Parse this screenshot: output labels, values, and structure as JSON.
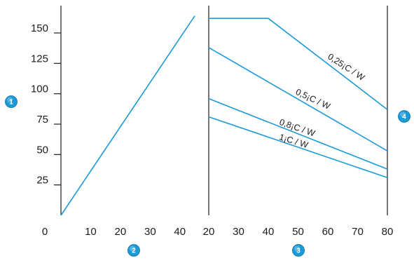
{
  "colors": {
    "line": "#1a9ad6",
    "axis": "#1a1a1a",
    "badge": "#1a9ad6",
    "badge_text": "#ffffff"
  },
  "chart_data": [
    {
      "type": "line",
      "xlim": [
        0,
        45
      ],
      "ylim": [
        0,
        175
      ],
      "x_ticks": [
        "0",
        "10",
        "20",
        "30",
        "40"
      ],
      "y_ticks": [
        "25",
        "50",
        "75",
        "100",
        "125",
        "150"
      ],
      "series": [
        {
          "x": [
            0,
            45
          ],
          "y": [
            0,
            164
          ]
        }
      ]
    },
    {
      "type": "line",
      "xlim": [
        20,
        80
      ],
      "ylim": [
        0,
        175
      ],
      "x_ticks": [
        "20",
        "30",
        "40",
        "50",
        "60",
        "70",
        "80"
      ],
      "series": [
        {
          "name": "0,25¡C / W",
          "x": [
            20,
            40,
            80
          ],
          "y": [
            162,
            162,
            87
          ]
        },
        {
          "name": "0,5¡C / W",
          "x": [
            20,
            80
          ],
          "y": [
            138,
            53
          ]
        },
        {
          "name": "0,8¡C / W",
          "x": [
            20,
            80
          ],
          "y": [
            96,
            38
          ]
        },
        {
          "name": "1¡C / W",
          "x": [
            20,
            80
          ],
          "y": [
            81,
            31
          ]
        }
      ]
    }
  ],
  "badges": {
    "b1": "1",
    "b2": "2",
    "b3": "3",
    "b4": "4"
  }
}
